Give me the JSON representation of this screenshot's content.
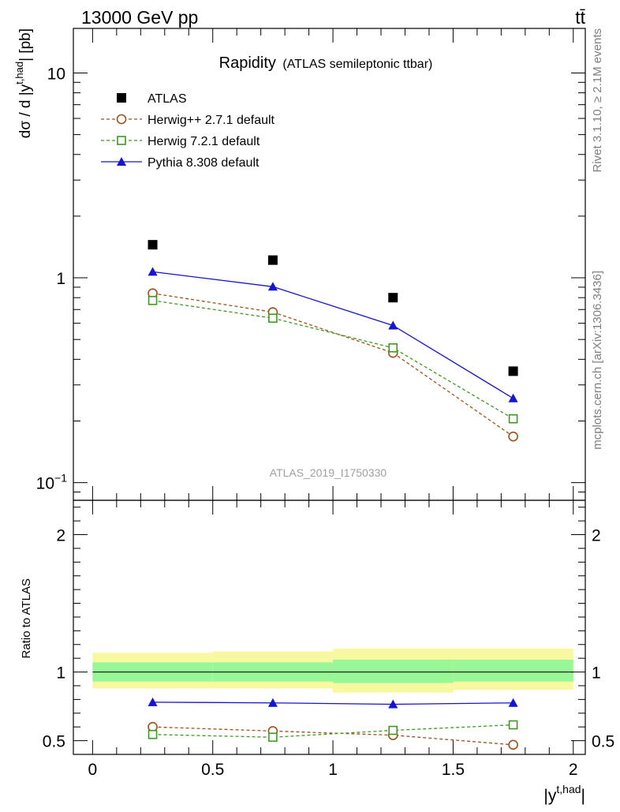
{
  "header": {
    "energy_label": "13000 GeV pp",
    "process_label": "tt̄"
  },
  "side_labels": {
    "rivet": "Rivet 3.1.10, ≥ 2.1M events",
    "source": "mcplots.cern.ch [arXiv:1306.3436]"
  },
  "chart_data": [
    {
      "type": "scatter",
      "title": "Rapidity",
      "subtitle": "(ATLAS semileptonic ttbar)",
      "analysis_tag": "ATLAS_2019_I1750330",
      "ylabel": "dσ / d |y^t,had| [pb]",
      "ylabel_parts": {
        "main": "dσ / d |y",
        "sup": "t,had",
        "end": "| [pb]"
      },
      "xlim": [
        -0.08,
        2.05
      ],
      "ylim": [
        0.082,
        16.5
      ],
      "yscale": "log",
      "ytick_labels": [
        {
          "value": 0.1,
          "base": "10",
          "exp": "−1"
        },
        {
          "value": 1,
          "text": "1"
        },
        {
          "value": 10,
          "text": "10"
        }
      ],
      "legend_position": "top-left",
      "x": [
        0.25,
        0.75,
        1.25,
        1.75
      ],
      "series": [
        {
          "name": "ATLAS",
          "values": [
            1.45,
            1.22,
            0.8,
            0.35
          ],
          "color": "#000000",
          "marker": "square-filled",
          "line": "none"
        },
        {
          "name": "Herwig++ 2.7.1 default",
          "values": [
            0.84,
            0.68,
            0.43,
            0.168
          ],
          "color": "#a0501a",
          "marker": "circle-open",
          "line": "dashed"
        },
        {
          "name": "Herwig 7.2.1 default",
          "values": [
            0.775,
            0.635,
            0.455,
            0.205
          ],
          "color": "#3c9a1e",
          "marker": "square-open",
          "line": "dashed"
        },
        {
          "name": "Pythia 8.308 default",
          "values": [
            1.07,
            0.905,
            0.585,
            0.258
          ],
          "color": "#1414d2",
          "marker": "triangle-filled",
          "line": "solid"
        }
      ]
    },
    {
      "type": "scatter",
      "ylabel": "Ratio to ATLAS",
      "xlabel": "|y^t,had|",
      "xlabel_parts": {
        "main": "|y",
        "sup": "t,had",
        "end": "|"
      },
      "xlim": [
        -0.08,
        2.05
      ],
      "ylim": [
        0.4,
        2.25
      ],
      "x_ticks": [
        0,
        0.5,
        1,
        1.5,
        2
      ],
      "y_ticks": [
        0.5,
        1,
        2
      ],
      "bands": [
        {
          "x0": 0.0,
          "x1": 0.5,
          "inner": [
            0.93,
            1.07
          ],
          "outer": [
            0.88,
            1.14
          ]
        },
        {
          "x0": 0.5,
          "x1": 1.0,
          "inner": [
            0.93,
            1.07
          ],
          "outer": [
            0.88,
            1.15
          ]
        },
        {
          "x0": 1.0,
          "x1": 1.5,
          "inner": [
            0.92,
            1.09
          ],
          "outer": [
            0.85,
            1.17
          ]
        },
        {
          "x0": 1.5,
          "x1": 2.0,
          "inner": [
            0.93,
            1.09
          ],
          "outer": [
            0.87,
            1.17
          ]
        }
      ],
      "band_colors": {
        "inner": "#98f898",
        "outer": "#f8f8a0"
      },
      "x": [
        0.25,
        0.75,
        1.25,
        1.75
      ],
      "series": [
        {
          "name": "Herwig++ 2.7.1 default",
          "values": [
            0.6,
            0.57,
            0.54,
            0.47
          ],
          "color": "#a0501a",
          "marker": "circle-open",
          "line": "dashed"
        },
        {
          "name": "Herwig 7.2.1 default",
          "values": [
            0.545,
            0.525,
            0.575,
            0.615
          ],
          "color": "#3c9a1e",
          "marker": "square-open",
          "line": "dashed"
        },
        {
          "name": "Pythia 8.308 default",
          "values": [
            0.78,
            0.775,
            0.765,
            0.775
          ],
          "color": "#1414d2",
          "marker": "triangle-filled",
          "line": "solid"
        }
      ]
    }
  ]
}
